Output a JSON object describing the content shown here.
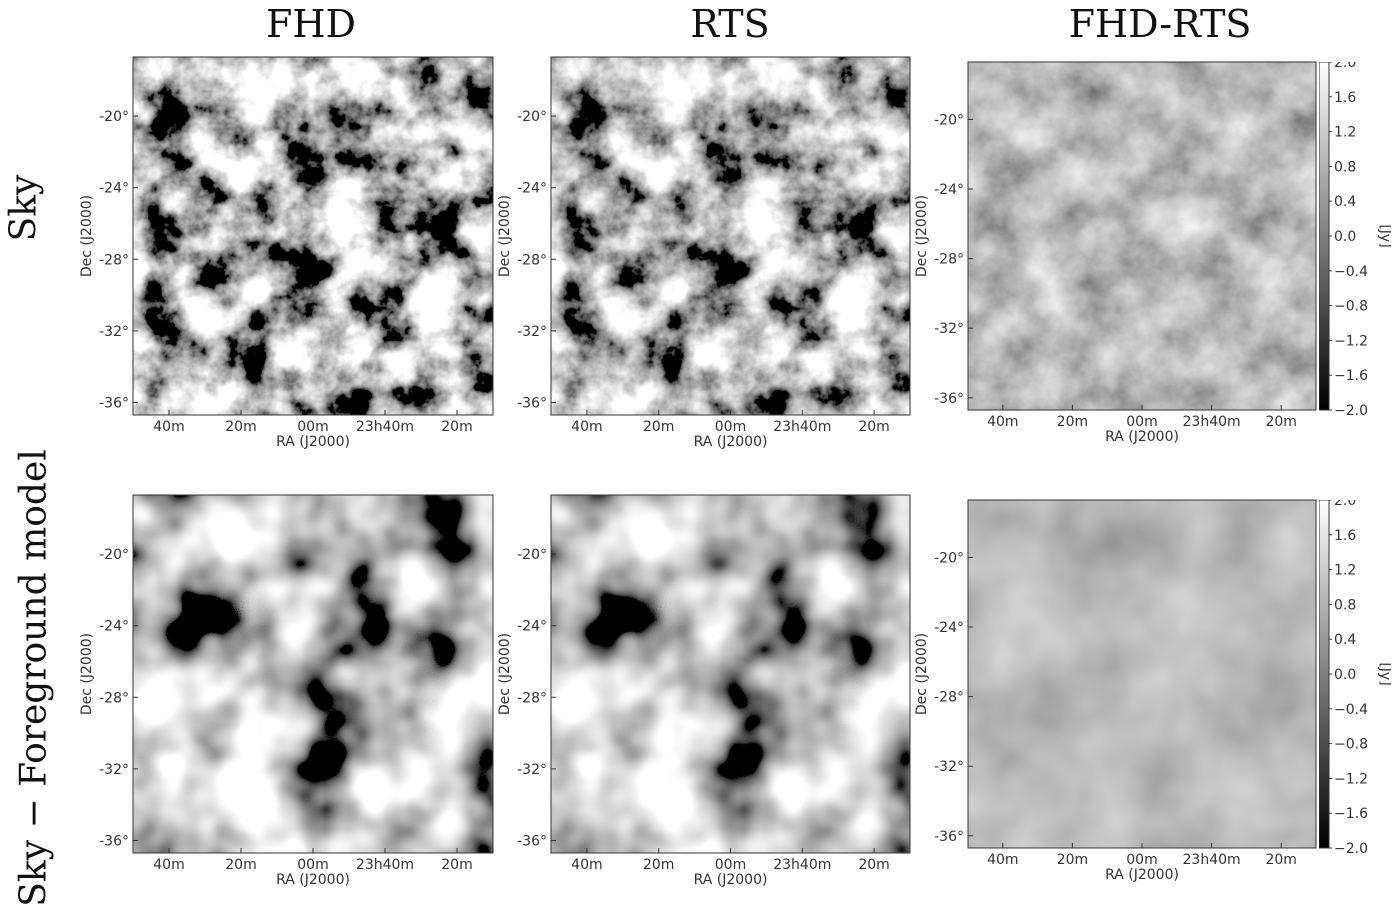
{
  "columns": [
    "FHD",
    "RTS",
    "FHD-RTS"
  ],
  "rows": [
    "Sky",
    "Sky − Foreground model"
  ],
  "axes": {
    "xlabel": "RA (J2000)",
    "ylabel": "Dec (J2000)",
    "xticks": [
      "40m",
      "20m",
      "00m",
      "23h40m",
      "20m"
    ],
    "yticks": [
      "-20°",
      "-24°",
      "-28°",
      "-32°",
      "-36°"
    ]
  },
  "colorbar": {
    "label": "[Jy]",
    "ticks": [
      "2.0",
      "1.6",
      "1.2",
      "0.8",
      "0.4",
      "0.0",
      "−0.4",
      "−0.8",
      "−1.2",
      "−1.6",
      "−2.0"
    ],
    "range": [
      -2.0,
      2.0
    ],
    "colormap": "gray"
  }
}
